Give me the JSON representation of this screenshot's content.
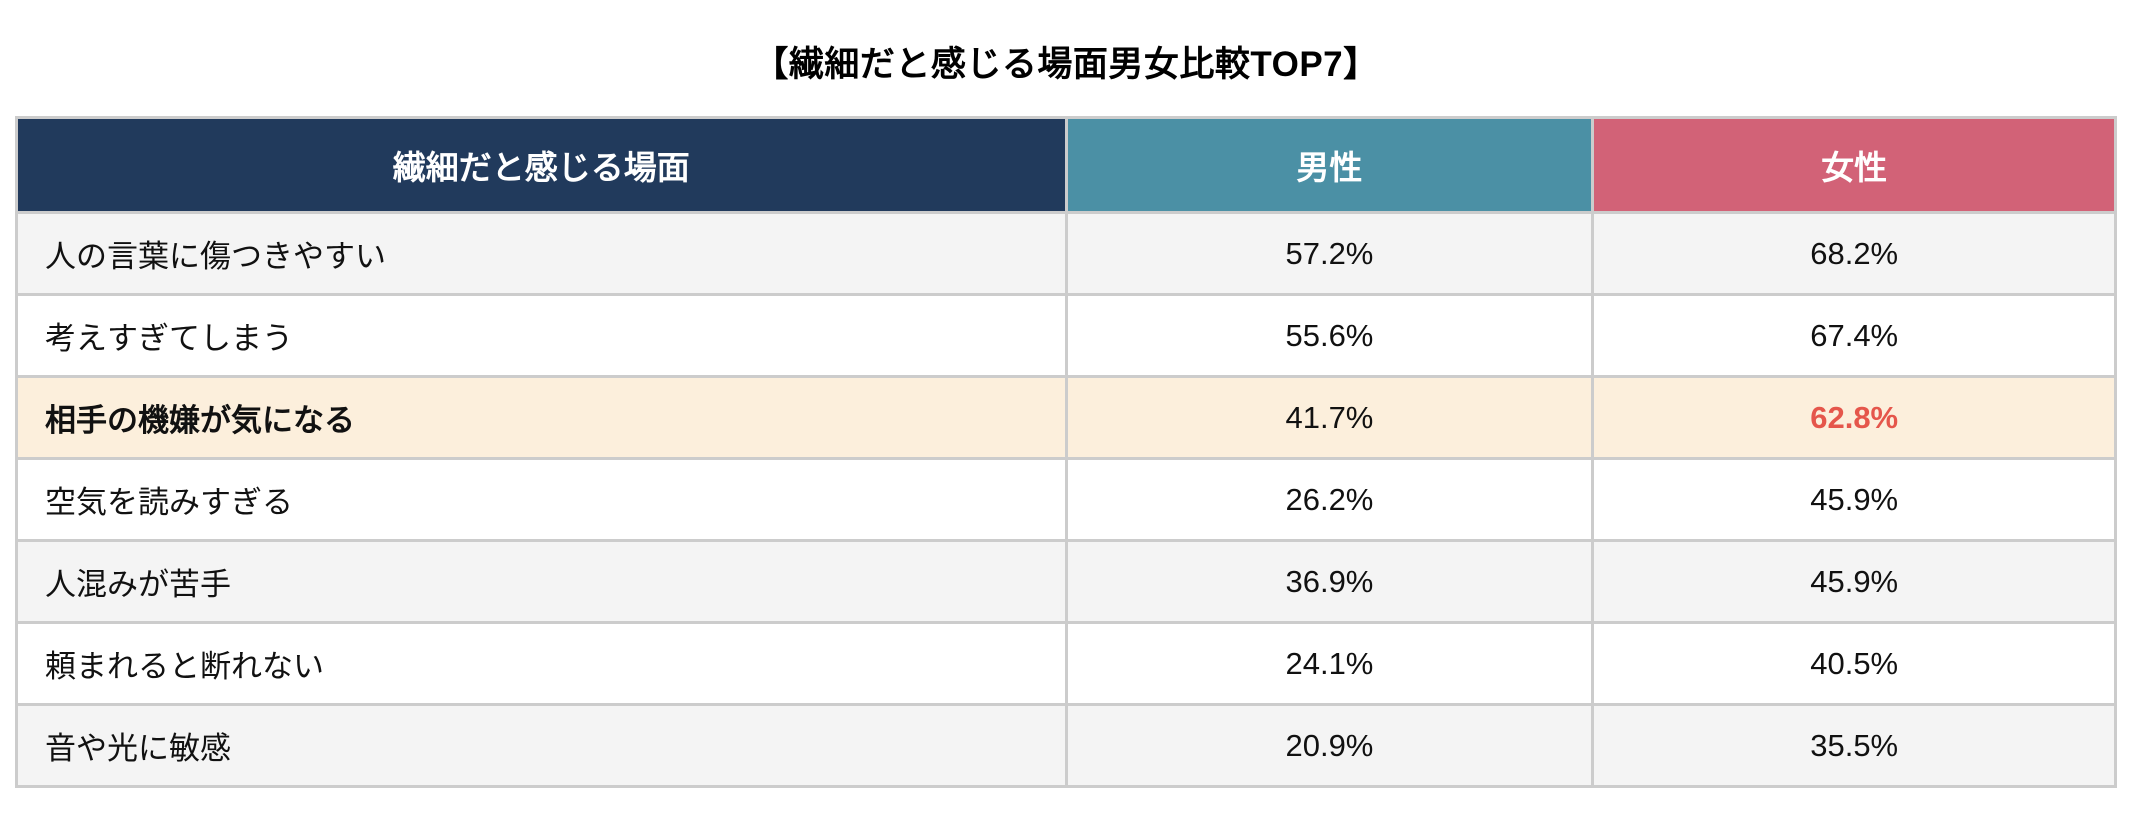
{
  "title": "【繊細だと感じる場面男女比較TOP7】",
  "colors": {
    "header_category_bg": "#213a5c",
    "header_male_bg": "#4b90a5",
    "header_female_bg": "#d26277",
    "header_text": "#ffffff",
    "row_zebra_bg": "#f4f4f4",
    "row_white_bg": "#ffffff",
    "row_highlight_bg": "#fcefdc",
    "highlight_value_color": "#e5564b",
    "border_color": "#cccccc",
    "body_text_color": "#111111"
  },
  "table": {
    "headers": [
      {
        "label": "繊細だと感じる場面"
      },
      {
        "label": "男性"
      },
      {
        "label": "女性"
      }
    ],
    "rows": [
      {
        "label": "人の言葉に傷つきやすい",
        "male": "57.2%",
        "female": "68.2%"
      },
      {
        "label": "考えすぎてしまう",
        "male": "55.6%",
        "female": "67.4%"
      },
      {
        "label": "相手の機嫌が気になる",
        "male": "41.7%",
        "female": "62.8%"
      },
      {
        "label": "空気を読みすぎる",
        "male": "26.2%",
        "female": "45.9%"
      },
      {
        "label": "人混みが苦手",
        "male": "36.9%",
        "female": "45.9%"
      },
      {
        "label": "頼まれると断れない",
        "male": "24.1%",
        "female": "40.5%"
      },
      {
        "label": "音や光に敏感",
        "male": "20.9%",
        "female": "35.5%"
      }
    ]
  },
  "chart_data": {
    "type": "table",
    "title": "【繊細だと感じる場面男女比較TOP7】",
    "columns": [
      "繊細だと感じる場面",
      "男性",
      "女性"
    ],
    "categories": [
      "人の言葉に傷つきやすい",
      "考えすぎてしまう",
      "相手の機嫌が気になる",
      "空気を読みすぎる",
      "人混みが苦手",
      "頼まれると断れない",
      "音や光に敏感"
    ],
    "series": [
      {
        "name": "男性",
        "values": [
          57.2,
          55.6,
          41.7,
          26.2,
          36.9,
          24.1,
          20.9
        ]
      },
      {
        "name": "女性",
        "values": [
          68.2,
          67.4,
          62.8,
          45.9,
          45.9,
          40.5,
          35.5
        ]
      }
    ],
    "unit": "%",
    "highlighted_row": "相手の機嫌が気になる",
    "highlighted_cell": {
      "row": "相手の機嫌が気になる",
      "column": "女性",
      "value": "62.8%"
    }
  }
}
